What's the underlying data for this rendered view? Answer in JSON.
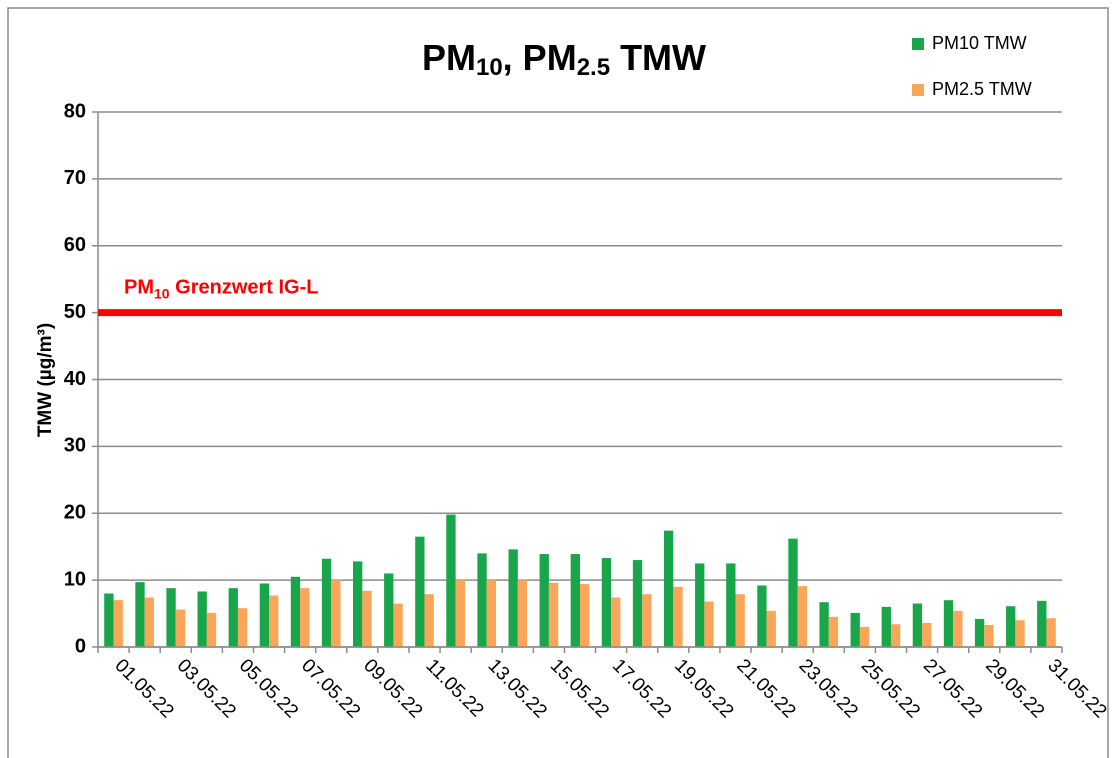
{
  "chart_data": {
    "type": "bar",
    "title": [
      {
        "text": "PM"
      },
      {
        "text": "10",
        "sub": true
      },
      {
        "text": ", PM"
      },
      {
        "text": "2.5",
        "sub": true
      },
      {
        "text": " TMW"
      }
    ],
    "y_label": "TMW (µg/m³)",
    "categories": [
      "01.05.22",
      null,
      "03.05.22",
      null,
      "05.05.22",
      null,
      "07.05.22",
      null,
      "09.05.22",
      null,
      "11.05.22",
      null,
      "13.05.22",
      null,
      "15.05.22",
      null,
      "17.05.22",
      null,
      "19.05.22",
      null,
      "21.05.22",
      null,
      "23.05.22",
      null,
      "25.05.22",
      null,
      "27.05.22",
      null,
      "29.05.22",
      null,
      "31.05.22"
    ],
    "series": [
      {
        "name": "PM10 TMW",
        "color": "#19a64a",
        "values": [
          8,
          9.7,
          8.8,
          8.3,
          8.8,
          9.5,
          10.5,
          13.2,
          12.8,
          11,
          16.5,
          19.8,
          14,
          14.6,
          13.9,
          13.9,
          13.3,
          13,
          17.4,
          12.5,
          12.5,
          9.2,
          16.2,
          6.7,
          5.1,
          6,
          6.5,
          7,
          4.2,
          6.1,
          6.9
        ]
      },
      {
        "name": "PM2.5 TMW",
        "color": "#f9a65a",
        "values": [
          7,
          7.4,
          5.6,
          5.1,
          5.8,
          7.7,
          8.8,
          10,
          8.4,
          6.5,
          7.9,
          10,
          10,
          10,
          9.6,
          9.4,
          7.4,
          7.9,
          9,
          6.8,
          7.9,
          5.4,
          9.1,
          4.5,
          3,
          3.4,
          3.6,
          5.4,
          3.3,
          4,
          4.3
        ]
      }
    ],
    "limit_line": {
      "value": 50,
      "color": "#ff0000",
      "label": [
        {
          "text": "PM"
        },
        {
          "text": "10",
          "sub": true
        },
        {
          "text": " Grenzwert IG-L"
        }
      ]
    },
    "ylim": [
      0,
      80
    ],
    "yticks": [
      0,
      10,
      20,
      30,
      40,
      50,
      60,
      70,
      80
    ],
    "grid": true,
    "legend": "top-right"
  }
}
